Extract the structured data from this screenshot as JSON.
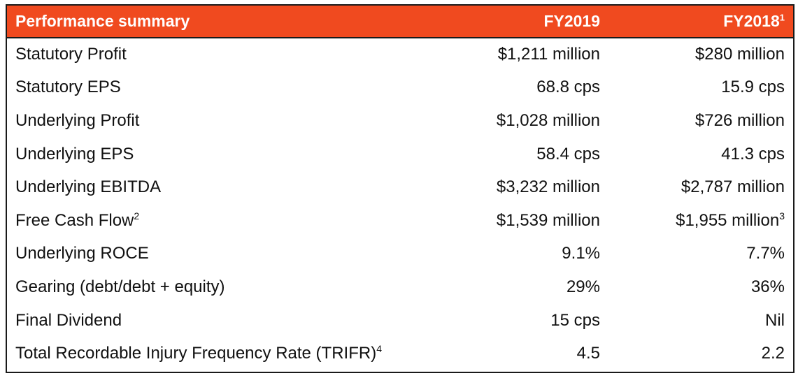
{
  "header": {
    "label": "Performance summary",
    "fy2019": "FY2019",
    "fy2018": "FY2018",
    "fy2018_note": "1"
  },
  "rows": [
    {
      "label": "Statutory Profit",
      "label_note": "",
      "fy2019": "$1,211 million",
      "fy2018": "$280 million",
      "fy2018_note": ""
    },
    {
      "label": "Statutory EPS",
      "label_note": "",
      "fy2019": "68.8 cps",
      "fy2018": "15.9 cps",
      "fy2018_note": ""
    },
    {
      "label": "Underlying Profit",
      "label_note": "",
      "fy2019": "$1,028 million",
      "fy2018": "$726 million",
      "fy2018_note": ""
    },
    {
      "label": "Underlying EPS",
      "label_note": "",
      "fy2019": "58.4 cps",
      "fy2018": "41.3 cps",
      "fy2018_note": ""
    },
    {
      "label": "Underlying EBITDA",
      "label_note": "",
      "fy2019": "$3,232 million",
      "fy2018": "$2,787 million",
      "fy2018_note": ""
    },
    {
      "label": "Free Cash Flow",
      "label_note": "2",
      "fy2019": "$1,539 million",
      "fy2018": "$1,955 million",
      "fy2018_note": "3"
    },
    {
      "label": "Underlying ROCE",
      "label_note": "",
      "fy2019": "9.1%",
      "fy2018": "7.7%",
      "fy2018_note": ""
    },
    {
      "label": "Gearing (debt/debt + equity)",
      "label_note": "",
      "fy2019": "29%",
      "fy2018": "36%",
      "fy2018_note": ""
    },
    {
      "label": "Final Dividend",
      "label_note": "",
      "fy2019": "15 cps",
      "fy2018": "Nil",
      "fy2018_note": ""
    },
    {
      "label": "Total Recordable Injury Frequency Rate (TRIFR)",
      "label_note": "4",
      "fy2019": "4.5",
      "fy2018": "2.2",
      "fy2018_note": ""
    }
  ],
  "colors": {
    "header_bg": "#f04a1f",
    "header_text": "#ffffff",
    "border": "#1a1a1a"
  }
}
